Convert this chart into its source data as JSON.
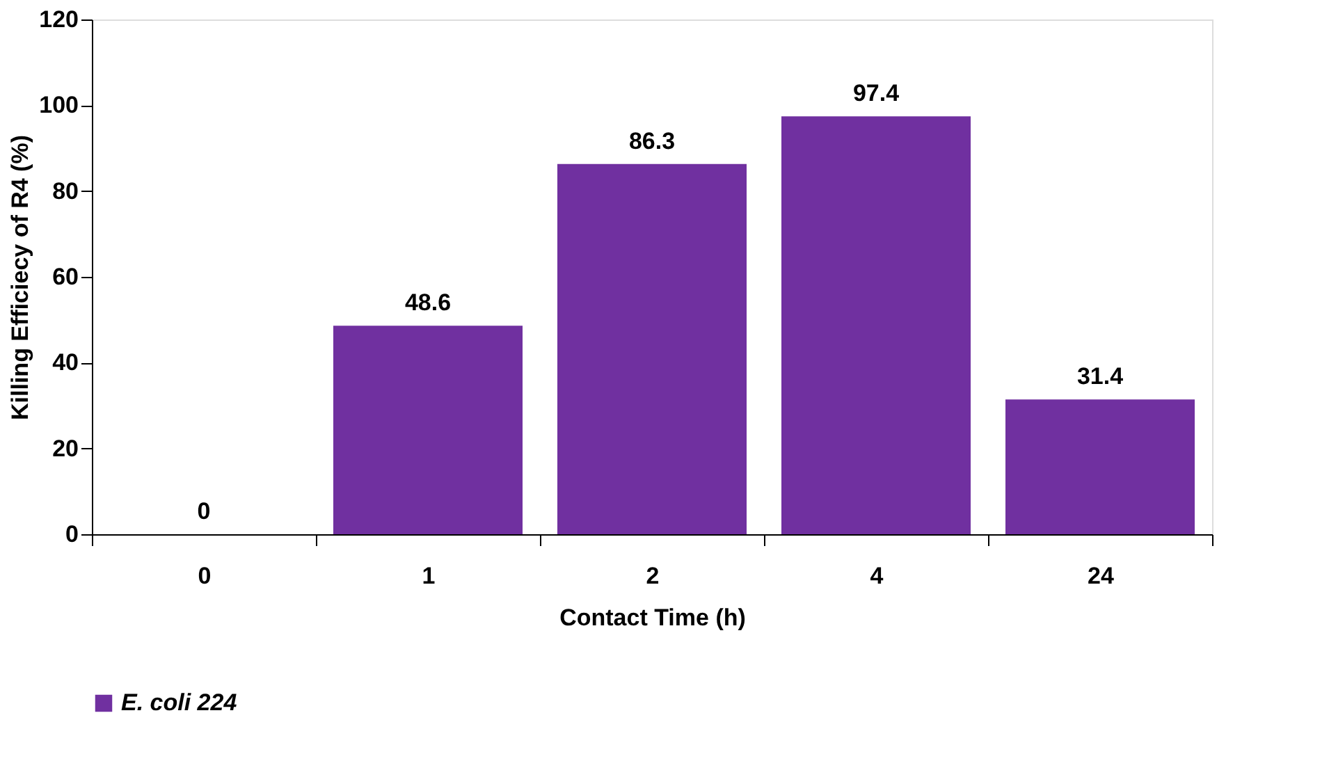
{
  "chart_data": {
    "type": "bar",
    "xlabel": "Contact Time (h)",
    "ylabel": "Killing Efficiecy of R4 (%)",
    "categories": [
      "0",
      "1",
      "2",
      "4",
      "24"
    ],
    "series": [
      {
        "name": "E. coli 224",
        "color": "#7030a0",
        "values": [
          0,
          48.6,
          86.3,
          97.4,
          31.4
        ]
      }
    ],
    "ylim": [
      0,
      120
    ],
    "yticks": [
      0,
      20,
      40,
      60,
      80,
      100,
      120
    ],
    "data_labels": true,
    "legend": "bottom"
  }
}
